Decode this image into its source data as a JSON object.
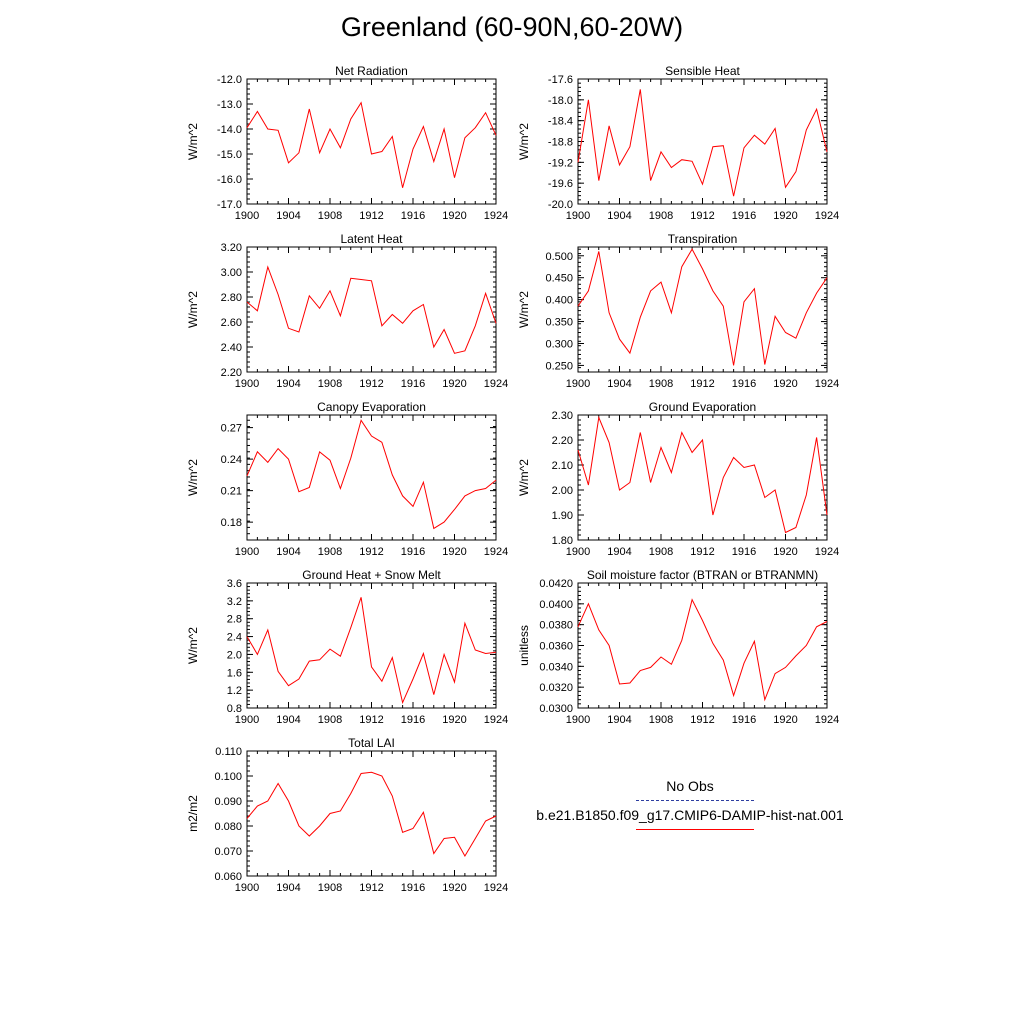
{
  "title": "Greenland (60-90N,60-20W)",
  "colors": {
    "model": "#ff0000",
    "obs": "#2d3ea1",
    "axis": "#000000"
  },
  "legend": {
    "entries": [
      {
        "label": "No Obs",
        "style": "dashed",
        "color": "#2d3ea1"
      },
      {
        "label": "b.e21.B1850.f09_g17.CMIP6-DAMIP-hist-nat.001",
        "style": "solid",
        "color": "#ff0000"
      }
    ]
  },
  "chart_data": [
    {
      "type": "line",
      "title": "Net Radiation",
      "ylabel": "W/m^2",
      "ylim": [
        -17.0,
        -12.0
      ],
      "yticks": [
        "-17.0",
        "-16.0",
        "-15.0",
        "-14.0",
        "-13.0",
        "-12.0"
      ],
      "xlim": [
        1900,
        1924
      ],
      "xticks": [
        "1900",
        "1904",
        "1908",
        "1912",
        "1916",
        "1920",
        "1924"
      ],
      "x": [
        1900,
        1901,
        1902,
        1903,
        1904,
        1905,
        1906,
        1907,
        1908,
        1909,
        1910,
        1911,
        1912,
        1913,
        1914,
        1915,
        1916,
        1917,
        1918,
        1919,
        1920,
        1921,
        1922,
        1923,
        1924
      ],
      "series": [
        {
          "values": [
            -13.95,
            -13.3,
            -14.0,
            -14.05,
            -15.35,
            -14.95,
            -13.2,
            -14.95,
            -14.0,
            -14.75,
            -13.6,
            -12.95,
            -15.0,
            -14.9,
            -14.3,
            -16.35,
            -14.8,
            -13.9,
            -15.3,
            -14.0,
            -15.95,
            -14.35,
            -13.95,
            -13.35,
            -14.25
          ]
        }
      ]
    },
    {
      "type": "line",
      "title": "Sensible Heat",
      "ylabel": "W/m^2",
      "ylim": [
        -20.0,
        -17.6
      ],
      "yticks": [
        "-20.0",
        "-19.6",
        "-19.2",
        "-18.8",
        "-18.4",
        "-18.0",
        "-17.6"
      ],
      "xlim": [
        1900,
        1924
      ],
      "xticks": [
        "1900",
        "1904",
        "1908",
        "1912",
        "1916",
        "1920",
        "1924"
      ],
      "x": [
        1900,
        1901,
        1902,
        1903,
        1904,
        1905,
        1906,
        1907,
        1908,
        1909,
        1910,
        1911,
        1912,
        1913,
        1914,
        1915,
        1916,
        1917,
        1918,
        1919,
        1920,
        1921,
        1922,
        1923,
        1924
      ],
      "series": [
        {
          "values": [
            -19.2,
            -18.0,
            -19.55,
            -18.5,
            -19.25,
            -18.9,
            -17.8,
            -19.55,
            -19.0,
            -19.3,
            -19.15,
            -19.18,
            -19.62,
            -18.9,
            -18.88,
            -19.85,
            -18.92,
            -18.68,
            -18.85,
            -18.55,
            -19.68,
            -19.38,
            -18.58,
            -18.18,
            -19.0
          ]
        }
      ]
    },
    {
      "type": "line",
      "title": "Latent Heat",
      "ylabel": "W/m^2",
      "ylim": [
        2.2,
        3.2
      ],
      "yticks": [
        "2.20",
        "2.40",
        "2.60",
        "2.80",
        "3.00",
        "3.20"
      ],
      "xlim": [
        1900,
        1924
      ],
      "xticks": [
        "1900",
        "1904",
        "1908",
        "1912",
        "1916",
        "1920",
        "1924"
      ],
      "x": [
        1900,
        1901,
        1902,
        1903,
        1904,
        1905,
        1906,
        1907,
        1908,
        1909,
        1910,
        1911,
        1912,
        1913,
        1914,
        1915,
        1916,
        1917,
        1918,
        1919,
        1920,
        1921,
        1922,
        1923,
        1924
      ],
      "series": [
        {
          "values": [
            2.76,
            2.69,
            3.04,
            2.82,
            2.55,
            2.52,
            2.81,
            2.71,
            2.85,
            2.65,
            2.95,
            2.94,
            2.93,
            2.57,
            2.66,
            2.59,
            2.69,
            2.74,
            2.4,
            2.54,
            2.35,
            2.37,
            2.57,
            2.83,
            2.59
          ]
        }
      ]
    },
    {
      "type": "line",
      "title": "Transpiration",
      "ylabel": "W/m^2",
      "ylim": [
        0.235,
        0.52
      ],
      "yticks": [
        "0.250",
        "0.300",
        "0.350",
        "0.400",
        "0.450",
        "0.500"
      ],
      "xlim": [
        1900,
        1924
      ],
      "xticks": [
        "1900",
        "1904",
        "1908",
        "1912",
        "1916",
        "1920",
        "1924"
      ],
      "x": [
        1900,
        1901,
        1902,
        1903,
        1904,
        1905,
        1906,
        1907,
        1908,
        1909,
        1910,
        1911,
        1912,
        1913,
        1914,
        1915,
        1916,
        1917,
        1918,
        1919,
        1920,
        1921,
        1922,
        1923,
        1924
      ],
      "series": [
        {
          "values": [
            0.385,
            0.42,
            0.51,
            0.37,
            0.31,
            0.278,
            0.36,
            0.42,
            0.44,
            0.37,
            0.475,
            0.515,
            0.47,
            0.42,
            0.385,
            0.25,
            0.395,
            0.425,
            0.252,
            0.362,
            0.325,
            0.312,
            0.37,
            0.415,
            0.45
          ]
        }
      ]
    },
    {
      "type": "line",
      "title": "Canopy Evaporation",
      "ylabel": "W/m^2",
      "ylim": [
        0.163,
        0.282
      ],
      "yticks": [
        "0.18",
        "0.21",
        "0.24",
        "0.27"
      ],
      "xlim": [
        1900,
        1924
      ],
      "xticks": [
        "1900",
        "1904",
        "1908",
        "1912",
        "1916",
        "1920",
        "1924"
      ],
      "x": [
        1900,
        1901,
        1902,
        1903,
        1904,
        1905,
        1906,
        1907,
        1908,
        1909,
        1910,
        1911,
        1912,
        1913,
        1914,
        1915,
        1916,
        1917,
        1918,
        1919,
        1920,
        1921,
        1922,
        1923,
        1924
      ],
      "series": [
        {
          "values": [
            0.224,
            0.247,
            0.237,
            0.25,
            0.24,
            0.209,
            0.213,
            0.247,
            0.239,
            0.212,
            0.241,
            0.277,
            0.262,
            0.256,
            0.225,
            0.205,
            0.195,
            0.218,
            0.174,
            0.18,
            0.192,
            0.205,
            0.21,
            0.212,
            0.22
          ]
        }
      ]
    },
    {
      "type": "line",
      "title": "Ground Evaporation",
      "ylabel": "W/m^2",
      "ylim": [
        1.8,
        2.3
      ],
      "yticks": [
        "1.80",
        "1.90",
        "2.00",
        "2.10",
        "2.20",
        "2.30"
      ],
      "xlim": [
        1900,
        1924
      ],
      "xticks": [
        "1900",
        "1904",
        "1908",
        "1912",
        "1916",
        "1920",
        "1924"
      ],
      "x": [
        1900,
        1901,
        1902,
        1903,
        1904,
        1905,
        1906,
        1907,
        1908,
        1909,
        1910,
        1911,
        1912,
        1913,
        1914,
        1915,
        1916,
        1917,
        1918,
        1919,
        1920,
        1921,
        1922,
        1923,
        1924
      ],
      "series": [
        {
          "values": [
            2.16,
            2.02,
            2.29,
            2.19,
            2.0,
            2.03,
            2.23,
            2.03,
            2.17,
            2.07,
            2.23,
            2.15,
            2.2,
            1.9,
            2.05,
            2.13,
            2.09,
            2.1,
            1.97,
            2.0,
            1.83,
            1.85,
            1.98,
            2.21,
            1.9
          ]
        }
      ]
    },
    {
      "type": "line",
      "title": "Ground Heat + Snow Melt",
      "ylabel": "W/m^2",
      "ylim": [
        0.8,
        3.6
      ],
      "yticks": [
        "0.8",
        "1.2",
        "1.6",
        "2.0",
        "2.4",
        "2.8",
        "3.2",
        "3.6"
      ],
      "xlim": [
        1900,
        1924
      ],
      "xticks": [
        "1900",
        "1904",
        "1908",
        "1912",
        "1916",
        "1920",
        "1924"
      ],
      "x": [
        1900,
        1901,
        1902,
        1903,
        1904,
        1905,
        1906,
        1907,
        1908,
        1909,
        1910,
        1911,
        1912,
        1913,
        1914,
        1915,
        1916,
        1917,
        1918,
        1919,
        1920,
        1921,
        1922,
        1923,
        1924
      ],
      "series": [
        {
          "values": [
            2.4,
            2.0,
            2.55,
            1.62,
            1.3,
            1.45,
            1.85,
            1.88,
            2.12,
            1.96,
            2.6,
            3.28,
            1.72,
            1.4,
            1.93,
            0.92,
            1.45,
            2.02,
            1.1,
            2.0,
            1.38,
            2.7,
            2.1,
            2.02,
            2.05
          ]
        }
      ]
    },
    {
      "type": "line",
      "title": "Soil moisture factor (BTRAN or BTRANMN)",
      "ylabel": "unitless",
      "ylim": [
        0.03,
        0.042
      ],
      "yticks": [
        "0.0300",
        "0.0320",
        "0.0340",
        "0.0360",
        "0.0380",
        "0.0400",
        "0.0420"
      ],
      "xlim": [
        1900,
        1924
      ],
      "xticks": [
        "1900",
        "1904",
        "1908",
        "1912",
        "1916",
        "1920",
        "1924"
      ],
      "x": [
        1900,
        1901,
        1902,
        1903,
        1904,
        1905,
        1906,
        1907,
        1908,
        1909,
        1910,
        1911,
        1912,
        1913,
        1914,
        1915,
        1916,
        1917,
        1918,
        1919,
        1920,
        1921,
        1922,
        1923,
        1924
      ],
      "series": [
        {
          "values": [
            0.0378,
            0.04,
            0.0375,
            0.036,
            0.0323,
            0.0324,
            0.0336,
            0.0339,
            0.0349,
            0.0342,
            0.0365,
            0.0404,
            0.0384,
            0.0362,
            0.0346,
            0.0312,
            0.0343,
            0.0364,
            0.0308,
            0.0333,
            0.0339,
            0.035,
            0.036,
            0.0378,
            0.0383
          ]
        }
      ]
    },
    {
      "type": "line",
      "title": "Total LAI",
      "ylabel": "m2/m2",
      "ylim": [
        0.06,
        0.11
      ],
      "yticks": [
        "0.060",
        "0.070",
        "0.080",
        "0.090",
        "0.100",
        "0.110"
      ],
      "xlim": [
        1900,
        1924
      ],
      "xticks": [
        "1900",
        "1904",
        "1908",
        "1912",
        "1916",
        "1920",
        "1924"
      ],
      "x": [
        1900,
        1901,
        1902,
        1903,
        1904,
        1905,
        1906,
        1907,
        1908,
        1909,
        1910,
        1911,
        1912,
        1913,
        1914,
        1915,
        1916,
        1917,
        1918,
        1919,
        1920,
        1921,
        1922,
        1923,
        1924
      ],
      "series": [
        {
          "values": [
            0.083,
            0.088,
            0.09,
            0.097,
            0.09,
            0.08,
            0.076,
            0.08,
            0.085,
            0.086,
            0.093,
            0.101,
            0.1015,
            0.1,
            0.092,
            0.0775,
            0.079,
            0.0855,
            0.069,
            0.075,
            0.0755,
            0.068,
            0.075,
            0.082,
            0.084
          ]
        }
      ]
    }
  ]
}
